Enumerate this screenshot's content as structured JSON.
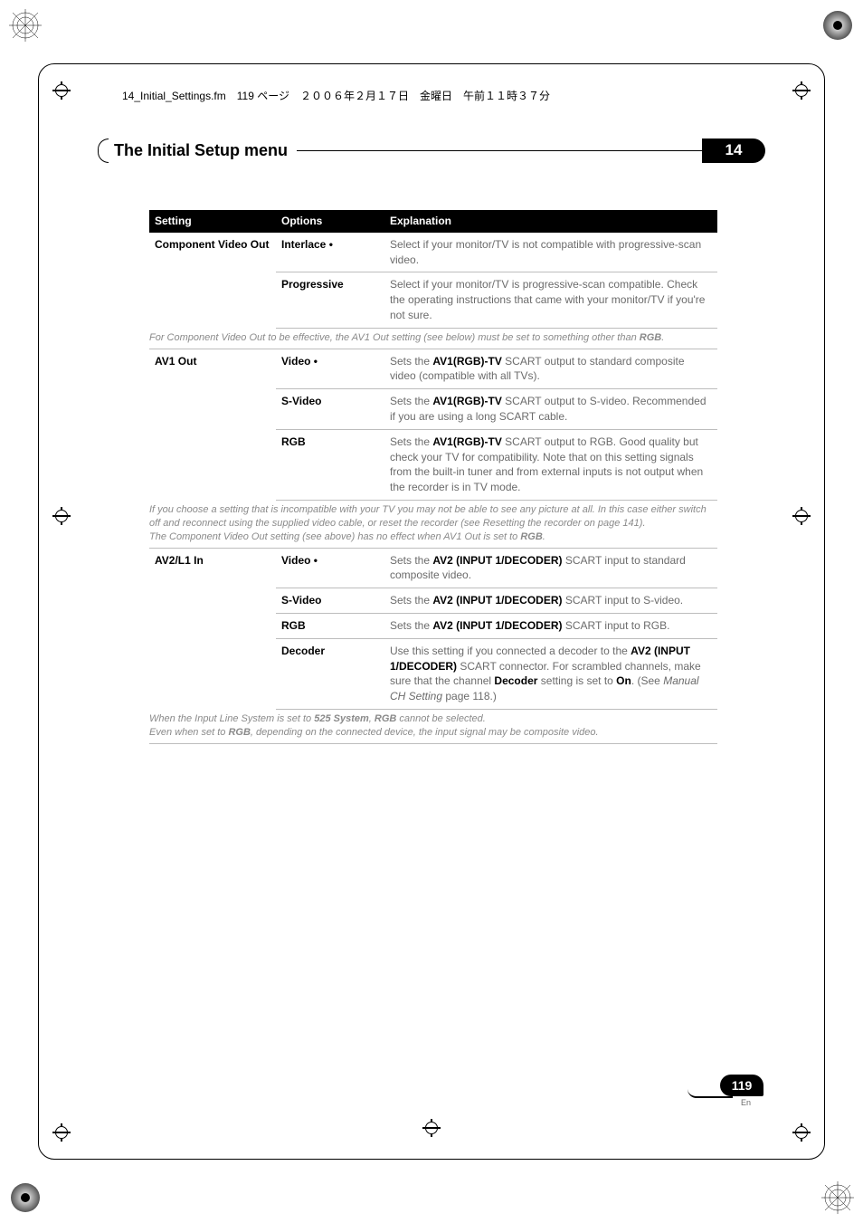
{
  "header_text": "14_Initial_Settings.fm　119 ページ　２００６年２月１７日　金曜日　午前１１時３７分",
  "title": "The Initial Setup menu",
  "chapter_badge": "14",
  "table_headers": {
    "setting": "Setting",
    "options": "Options",
    "explanation": "Explanation"
  },
  "rows": [
    {
      "setting": "Component Video Out",
      "options": [
        {
          "name": "Interlace •",
          "exp": "Select if your monitor/TV is not compatible with progressive-scan video."
        },
        {
          "name": "Progressive",
          "exp": "Select if your monitor/TV is progressive-scan compatible. Check the operating instructions that came with your monitor/TV if you're not sure."
        }
      ],
      "note_pre": "For Component Video Out to be effective, the AV1 Out setting (see below) must be set to something other than ",
      "note_bold": "RGB",
      "note_post": "."
    },
    {
      "setting": "AV1 Out",
      "options": [
        {
          "name": "Video •",
          "exp_pre": "Sets the ",
          "exp_bold": "AV1(RGB)-TV",
          "exp_post": " SCART output to standard composite video (compatible with all TVs)."
        },
        {
          "name": "S-Video",
          "exp_pre": "Sets the ",
          "exp_bold": "AV1(RGB)-TV",
          "exp_post": " SCART output to S-video. Recommended if you are using a long SCART cable."
        },
        {
          "name": "RGB",
          "exp_pre": "Sets the ",
          "exp_bold": "AV1(RGB)-TV",
          "exp_post": " SCART output to RGB. Good quality but check your TV for compatibility. Note that on this setting signals from the built-in tuner and from external inputs is not output when the recorder is in TV mode."
        }
      ],
      "note_lines": [
        "If you choose a setting that is incompatible with your TV you may not be able to see any picture at all. In this case either switch off and reconnect using the supplied video cable, or reset the recorder (see Resetting the recorder on page 141).",
        "The Component Video Out setting (see above) has no effect when AV1 Out is set to "
      ],
      "note_bold": "RGB",
      "note_post": "."
    },
    {
      "setting": "AV2/L1 In",
      "options": [
        {
          "name": "Video •",
          "exp_pre": "Sets the ",
          "exp_bold": "AV2 (INPUT 1/DECODER)",
          "exp_post": " SCART input to standard composite video."
        },
        {
          "name": "S-Video",
          "exp_pre": "Sets the ",
          "exp_bold": "AV2 (INPUT 1/DECODER)",
          "exp_post": " SCART input to S-video."
        },
        {
          "name": "RGB",
          "exp_pre": "Sets the ",
          "exp_bold": "AV2 (INPUT 1/DECODER)",
          "exp_post": " SCART input to RGB."
        },
        {
          "name": "Decoder",
          "exp_html": "Use this setting if you connected a decoder to the <b style='color:#000'>AV2 (INPUT 1/DECODER)</b> SCART connector. For scrambled channels, make sure that the channel <b style='color:#000'>Decoder</b> setting is set to <b style='color:#000'>On</b>. (See <i>Manual CH Setting</i> page 118.)"
        }
      ],
      "note_lines_html": [
        "When the Input Line System is set to <span class='b'>525 System</span>, <span class='b'>RGB</span> cannot be selected.",
        "Even when set to <span class='b'>RGB</span>, depending on the connected device, the input signal may be composite video."
      ]
    }
  ],
  "page_number": "119",
  "page_lang": "En",
  "colors": {
    "text_gray": "#6b6b6b",
    "note_gray": "#8a8a8a",
    "border_gray": "#bdbdbd",
    "black": "#000000",
    "white": "#ffffff"
  }
}
